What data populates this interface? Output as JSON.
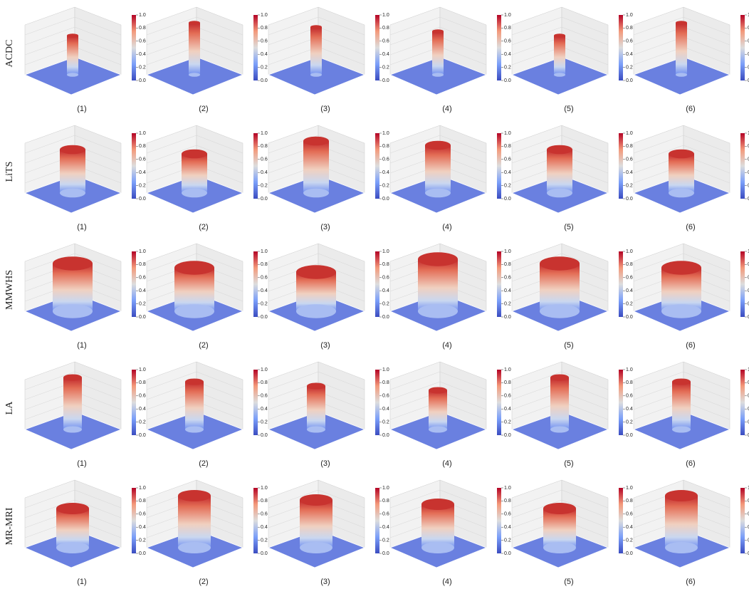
{
  "rows": [
    {
      "label": "ACDC",
      "panels": [
        "(1)",
        "(2)",
        "(3)",
        "(4)",
        "(5)",
        "(6)"
      ]
    },
    {
      "label": "LiTS",
      "panels": [
        "(1)",
        "(2)",
        "(3)",
        "(4)",
        "(5)",
        "(6)"
      ]
    },
    {
      "label": "MMWHS",
      "panels": [
        "(1)",
        "(2)",
        "(3)",
        "(4)",
        "(5)",
        "(6)"
      ]
    },
    {
      "label": "LA",
      "panels": [
        "(1)",
        "(2)",
        "(3)",
        "(4)",
        "(5)",
        "(6)"
      ]
    },
    {
      "label": "MR-MRI",
      "panels": [
        "(1)",
        "(2)",
        "(3)",
        "(4)",
        "(5)",
        "(6)"
      ]
    }
  ],
  "colorbar": {
    "range": [
      0,
      1
    ],
    "ticks": [
      {
        "value": 0,
        "label": "0.0"
      },
      {
        "value": 0.2,
        "label": "0.2"
      },
      {
        "value": 0.4,
        "label": "0.4"
      },
      {
        "value": 0.6,
        "label": "0.6"
      },
      {
        "value": 0.8,
        "label": "0.8"
      },
      {
        "value": 1,
        "label": "1.0"
      }
    ]
  }
}
